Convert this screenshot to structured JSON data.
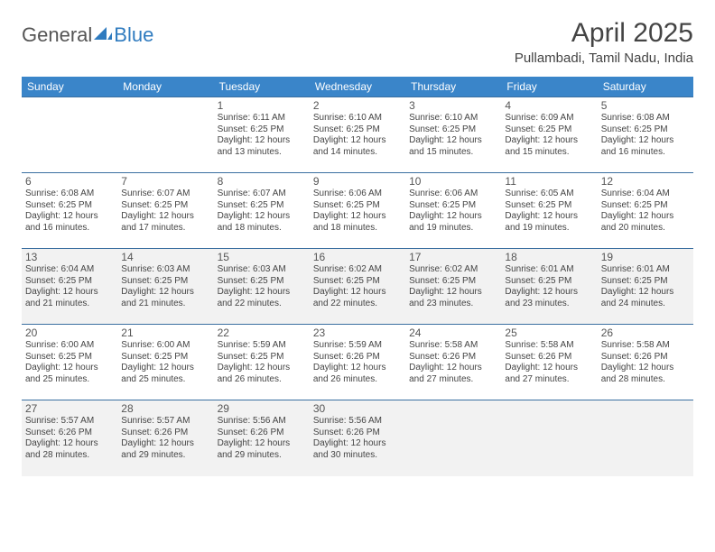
{
  "logo": {
    "text1": "General",
    "text2": "Blue"
  },
  "title": "April 2025",
  "subtitle": "Pullambadi, Tamil Nadu, India",
  "colors": {
    "header_bg": "#3a85c9",
    "header_text": "#ffffff",
    "cell_border": "#3a6fa0",
    "shaded_bg": "#f2f2f2",
    "text": "#444444",
    "logo_gray": "#555555",
    "logo_blue": "#2f7bbf"
  },
  "weekdays": [
    "Sunday",
    "Monday",
    "Tuesday",
    "Wednesday",
    "Thursday",
    "Friday",
    "Saturday"
  ],
  "shaded_rows": [
    2,
    4
  ],
  "grid": [
    [
      {
        "day": "",
        "lines": []
      },
      {
        "day": "",
        "lines": []
      },
      {
        "day": "1",
        "lines": [
          "Sunrise: 6:11 AM",
          "Sunset: 6:25 PM",
          "Daylight: 12 hours",
          "and 13 minutes."
        ]
      },
      {
        "day": "2",
        "lines": [
          "Sunrise: 6:10 AM",
          "Sunset: 6:25 PM",
          "Daylight: 12 hours",
          "and 14 minutes."
        ]
      },
      {
        "day": "3",
        "lines": [
          "Sunrise: 6:10 AM",
          "Sunset: 6:25 PM",
          "Daylight: 12 hours",
          "and 15 minutes."
        ]
      },
      {
        "day": "4",
        "lines": [
          "Sunrise: 6:09 AM",
          "Sunset: 6:25 PM",
          "Daylight: 12 hours",
          "and 15 minutes."
        ]
      },
      {
        "day": "5",
        "lines": [
          "Sunrise: 6:08 AM",
          "Sunset: 6:25 PM",
          "Daylight: 12 hours",
          "and 16 minutes."
        ]
      }
    ],
    [
      {
        "day": "6",
        "lines": [
          "Sunrise: 6:08 AM",
          "Sunset: 6:25 PM",
          "Daylight: 12 hours",
          "and 16 minutes."
        ]
      },
      {
        "day": "7",
        "lines": [
          "Sunrise: 6:07 AM",
          "Sunset: 6:25 PM",
          "Daylight: 12 hours",
          "and 17 minutes."
        ]
      },
      {
        "day": "8",
        "lines": [
          "Sunrise: 6:07 AM",
          "Sunset: 6:25 PM",
          "Daylight: 12 hours",
          "and 18 minutes."
        ]
      },
      {
        "day": "9",
        "lines": [
          "Sunrise: 6:06 AM",
          "Sunset: 6:25 PM",
          "Daylight: 12 hours",
          "and 18 minutes."
        ]
      },
      {
        "day": "10",
        "lines": [
          "Sunrise: 6:06 AM",
          "Sunset: 6:25 PM",
          "Daylight: 12 hours",
          "and 19 minutes."
        ]
      },
      {
        "day": "11",
        "lines": [
          "Sunrise: 6:05 AM",
          "Sunset: 6:25 PM",
          "Daylight: 12 hours",
          "and 19 minutes."
        ]
      },
      {
        "day": "12",
        "lines": [
          "Sunrise: 6:04 AM",
          "Sunset: 6:25 PM",
          "Daylight: 12 hours",
          "and 20 minutes."
        ]
      }
    ],
    [
      {
        "day": "13",
        "lines": [
          "Sunrise: 6:04 AM",
          "Sunset: 6:25 PM",
          "Daylight: 12 hours",
          "and 21 minutes."
        ]
      },
      {
        "day": "14",
        "lines": [
          "Sunrise: 6:03 AM",
          "Sunset: 6:25 PM",
          "Daylight: 12 hours",
          "and 21 minutes."
        ]
      },
      {
        "day": "15",
        "lines": [
          "Sunrise: 6:03 AM",
          "Sunset: 6:25 PM",
          "Daylight: 12 hours",
          "and 22 minutes."
        ]
      },
      {
        "day": "16",
        "lines": [
          "Sunrise: 6:02 AM",
          "Sunset: 6:25 PM",
          "Daylight: 12 hours",
          "and 22 minutes."
        ]
      },
      {
        "day": "17",
        "lines": [
          "Sunrise: 6:02 AM",
          "Sunset: 6:25 PM",
          "Daylight: 12 hours",
          "and 23 minutes."
        ]
      },
      {
        "day": "18",
        "lines": [
          "Sunrise: 6:01 AM",
          "Sunset: 6:25 PM",
          "Daylight: 12 hours",
          "and 23 minutes."
        ]
      },
      {
        "day": "19",
        "lines": [
          "Sunrise: 6:01 AM",
          "Sunset: 6:25 PM",
          "Daylight: 12 hours",
          "and 24 minutes."
        ]
      }
    ],
    [
      {
        "day": "20",
        "lines": [
          "Sunrise: 6:00 AM",
          "Sunset: 6:25 PM",
          "Daylight: 12 hours",
          "and 25 minutes."
        ]
      },
      {
        "day": "21",
        "lines": [
          "Sunrise: 6:00 AM",
          "Sunset: 6:25 PM",
          "Daylight: 12 hours",
          "and 25 minutes."
        ]
      },
      {
        "day": "22",
        "lines": [
          "Sunrise: 5:59 AM",
          "Sunset: 6:25 PM",
          "Daylight: 12 hours",
          "and 26 minutes."
        ]
      },
      {
        "day": "23",
        "lines": [
          "Sunrise: 5:59 AM",
          "Sunset: 6:26 PM",
          "Daylight: 12 hours",
          "and 26 minutes."
        ]
      },
      {
        "day": "24",
        "lines": [
          "Sunrise: 5:58 AM",
          "Sunset: 6:26 PM",
          "Daylight: 12 hours",
          "and 27 minutes."
        ]
      },
      {
        "day": "25",
        "lines": [
          "Sunrise: 5:58 AM",
          "Sunset: 6:26 PM",
          "Daylight: 12 hours",
          "and 27 minutes."
        ]
      },
      {
        "day": "26",
        "lines": [
          "Sunrise: 5:58 AM",
          "Sunset: 6:26 PM",
          "Daylight: 12 hours",
          "and 28 minutes."
        ]
      }
    ],
    [
      {
        "day": "27",
        "lines": [
          "Sunrise: 5:57 AM",
          "Sunset: 6:26 PM",
          "Daylight: 12 hours",
          "and 28 minutes."
        ]
      },
      {
        "day": "28",
        "lines": [
          "Sunrise: 5:57 AM",
          "Sunset: 6:26 PM",
          "Daylight: 12 hours",
          "and 29 minutes."
        ]
      },
      {
        "day": "29",
        "lines": [
          "Sunrise: 5:56 AM",
          "Sunset: 6:26 PM",
          "Daylight: 12 hours",
          "and 29 minutes."
        ]
      },
      {
        "day": "30",
        "lines": [
          "Sunrise: 5:56 AM",
          "Sunset: 6:26 PM",
          "Daylight: 12 hours",
          "and 30 minutes."
        ]
      },
      {
        "day": "",
        "lines": []
      },
      {
        "day": "",
        "lines": []
      },
      {
        "day": "",
        "lines": []
      }
    ]
  ]
}
